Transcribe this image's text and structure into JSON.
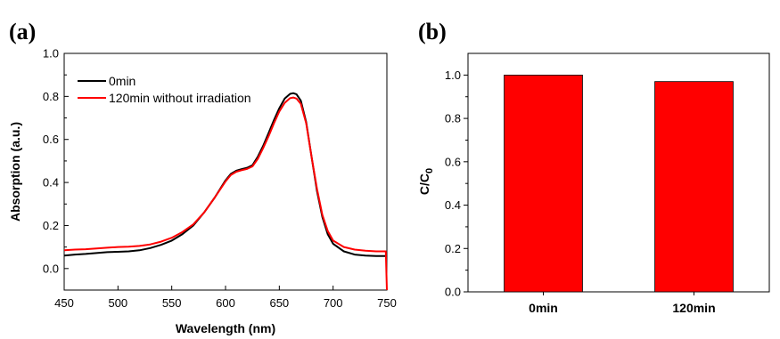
{
  "chart_data": [
    {
      "panel_label": "(a)",
      "type": "line",
      "xlabel": "Wavelength (nm)",
      "ylabel": "Absorption (a.u.)",
      "xlim": [
        450,
        750
      ],
      "ylim": [
        -0.1,
        1.0
      ],
      "xticks": [
        450,
        500,
        550,
        600,
        650,
        700,
        750
      ],
      "xtick_labels": [
        "450",
        "500",
        "550",
        "600",
        "650",
        "700",
        "750"
      ],
      "yticks": [
        0.0,
        0.2,
        0.4,
        0.6,
        0.8,
        1.0
      ],
      "ytick_labels": [
        "0.0",
        "0.2",
        "0.4",
        "0.6",
        "0.8",
        "1.0"
      ],
      "grid": false,
      "legend_position": "top-left",
      "series": [
        {
          "name": "0min",
          "color": "#000000",
          "points": [
            [
              450,
              0.06
            ],
            [
              460,
              0.065
            ],
            [
              470,
              0.068
            ],
            [
              480,
              0.072
            ],
            [
              490,
              0.076
            ],
            [
              500,
              0.078
            ],
            [
              510,
              0.08
            ],
            [
              520,
              0.085
            ],
            [
              530,
              0.095
            ],
            [
              540,
              0.11
            ],
            [
              550,
              0.13
            ],
            [
              560,
              0.16
            ],
            [
              570,
              0.2
            ],
            [
              580,
              0.26
            ],
            [
              590,
              0.33
            ],
            [
              600,
              0.41
            ],
            [
              605,
              0.44
            ],
            [
              610,
              0.455
            ],
            [
              615,
              0.462
            ],
            [
              620,
              0.468
            ],
            [
              625,
              0.48
            ],
            [
              630,
              0.52
            ],
            [
              635,
              0.57
            ],
            [
              640,
              0.63
            ],
            [
              645,
              0.69
            ],
            [
              650,
              0.745
            ],
            [
              655,
              0.79
            ],
            [
              660,
              0.812
            ],
            [
              663,
              0.815
            ],
            [
              666,
              0.81
            ],
            [
              670,
              0.78
            ],
            [
              675,
              0.68
            ],
            [
              680,
              0.52
            ],
            [
              685,
              0.36
            ],
            [
              690,
              0.24
            ],
            [
              695,
              0.16
            ],
            [
              700,
              0.115
            ],
            [
              710,
              0.08
            ],
            [
              720,
              0.065
            ],
            [
              730,
              0.06
            ],
            [
              740,
              0.058
            ],
            [
              750,
              0.058
            ]
          ]
        },
        {
          "name": "120min without irradiation",
          "color": "#ff0000",
          "points": [
            [
              450,
              0.085
            ],
            [
              460,
              0.088
            ],
            [
              470,
              0.09
            ],
            [
              480,
              0.093
            ],
            [
              490,
              0.097
            ],
            [
              500,
              0.1
            ],
            [
              510,
              0.102
            ],
            [
              520,
              0.105
            ],
            [
              530,
              0.112
            ],
            [
              540,
              0.125
            ],
            [
              550,
              0.143
            ],
            [
              560,
              0.17
            ],
            [
              570,
              0.205
            ],
            [
              580,
              0.26
            ],
            [
              590,
              0.33
            ],
            [
              600,
              0.405
            ],
            [
              605,
              0.435
            ],
            [
              610,
              0.45
            ],
            [
              615,
              0.457
            ],
            [
              620,
              0.463
            ],
            [
              625,
              0.475
            ],
            [
              630,
              0.51
            ],
            [
              635,
              0.56
            ],
            [
              640,
              0.615
            ],
            [
              645,
              0.675
            ],
            [
              650,
              0.73
            ],
            [
              655,
              0.77
            ],
            [
              660,
              0.792
            ],
            [
              663,
              0.795
            ],
            [
              666,
              0.79
            ],
            [
              670,
              0.765
            ],
            [
              675,
              0.675
            ],
            [
              680,
              0.52
            ],
            [
              685,
              0.37
            ],
            [
              690,
              0.25
            ],
            [
              695,
              0.175
            ],
            [
              700,
              0.13
            ],
            [
              710,
              0.1
            ],
            [
              720,
              0.088
            ],
            [
              730,
              0.083
            ],
            [
              740,
              0.08
            ],
            [
              749,
              0.08
            ],
            [
              750,
              -0.1
            ]
          ]
        }
      ]
    },
    {
      "panel_label": "(b)",
      "type": "bar",
      "categories": [
        "0min",
        "120min"
      ],
      "values": [
        1.0,
        0.97
      ],
      "color": "#ff0000",
      "ylabel_main": "C/C",
      "ylabel_sub": "0",
      "ylim": [
        0.0,
        1.1
      ],
      "yticks": [
        0.0,
        0.2,
        0.4,
        0.6,
        0.8,
        1.0
      ],
      "ytick_labels": [
        "0.0",
        "0.2",
        "0.4",
        "0.6",
        "0.8",
        "1.0"
      ],
      "grid": false
    }
  ]
}
